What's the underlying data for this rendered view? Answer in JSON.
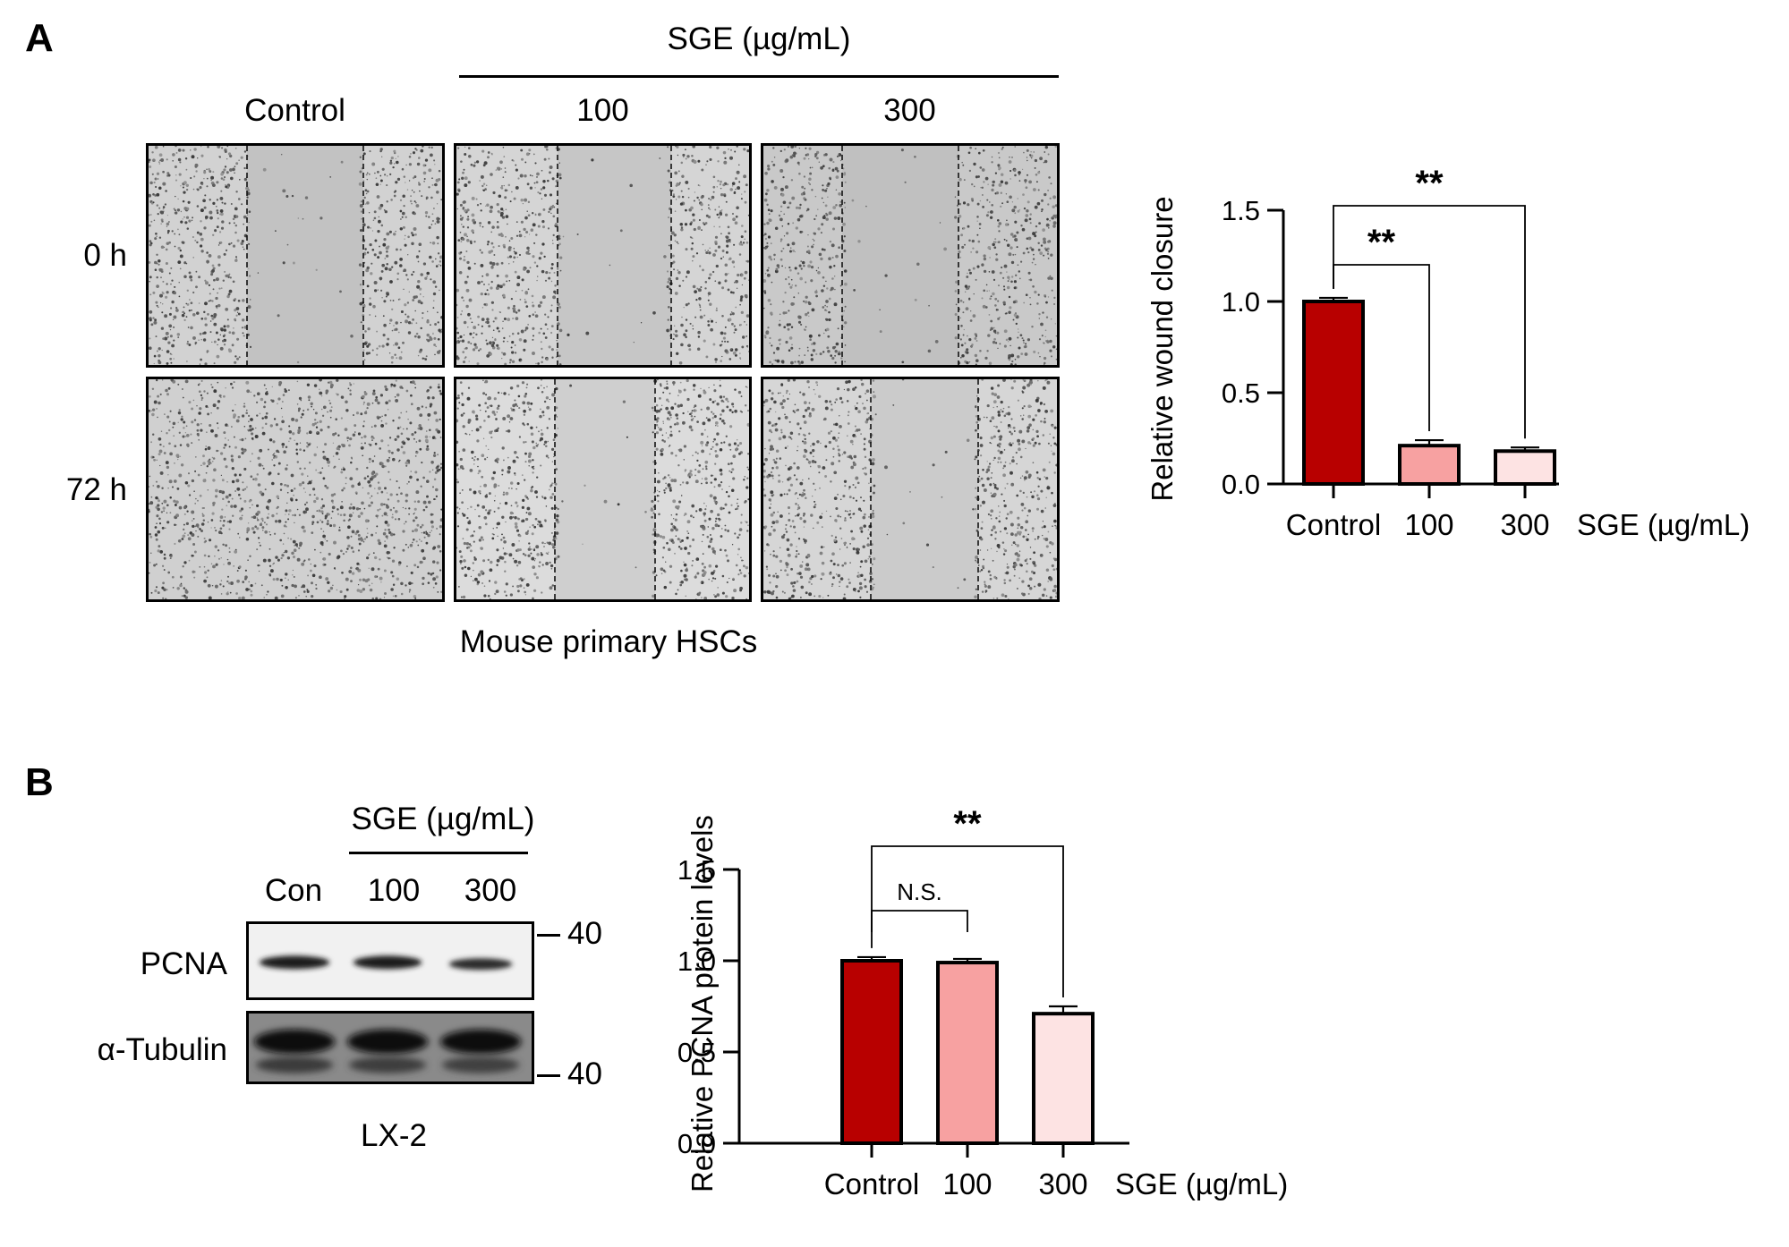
{
  "panel_a": {
    "letter": "A",
    "sge_header": "SGE (µg/mL)",
    "columns": [
      "Control",
      "100",
      "300"
    ],
    "rows": [
      "0 h",
      "72 h"
    ],
    "footer": "Mouse primary HSCs"
  },
  "panel_b": {
    "letter": "B",
    "sge_header": "SGE (µg/mL)",
    "lanes": [
      "Con",
      "100",
      "300"
    ],
    "proteins": [
      "PCNA",
      "α-Tubulin"
    ],
    "markers": [
      "40",
      "40"
    ],
    "cell_line": "LX-2"
  },
  "chart_data": [
    {
      "type": "bar",
      "categories": [
        "Control",
        "100",
        "300"
      ],
      "values": [
        1.0,
        0.21,
        0.18
      ],
      "errors": [
        0.02,
        0.03,
        0.02
      ],
      "ylabel": "Relative wound closure",
      "xlabel": "SGE (µg/mL)",
      "ylim": [
        0,
        1.5
      ],
      "yticks": [
        "0.0",
        "0.5",
        "1.0",
        "1.5"
      ],
      "colors": [
        "#b80000",
        "#f7a1a1",
        "#fde3e3"
      ],
      "annotations": [
        {
          "from": "Control",
          "to": "100",
          "text": "**"
        },
        {
          "from": "Control",
          "to": "300",
          "text": "**"
        }
      ]
    },
    {
      "type": "bar",
      "categories": [
        "Control",
        "100",
        "300"
      ],
      "values": [
        1.0,
        0.99,
        0.71
      ],
      "errors": [
        0.02,
        0.02,
        0.04
      ],
      "ylabel": "Relative PCNA protein levels",
      "xlabel": "SGE (µg/mL)",
      "ylim": [
        0,
        1.5
      ],
      "yticks": [
        "0.0",
        "0.5",
        "1.0",
        "1.5"
      ],
      "colors": [
        "#b80000",
        "#f7a1a1",
        "#fde3e3"
      ],
      "annotations": [
        {
          "from": "Control",
          "to": "100",
          "text": "N.S."
        },
        {
          "from": "Control",
          "to": "300",
          "text": "**"
        }
      ]
    }
  ]
}
